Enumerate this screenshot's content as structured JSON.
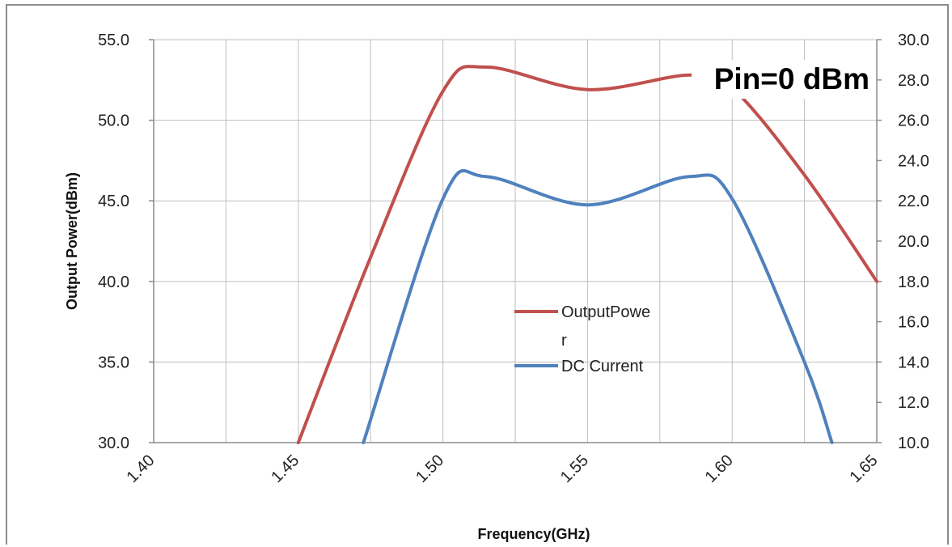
{
  "chart_data": {
    "type": "line",
    "xlabel": "Frequency(GHz)",
    "ylabel": "Output Power(dBm)",
    "annotation": "Pin=0 dBm",
    "x_ticks": [
      "1.40",
      "1.45",
      "1.50",
      "1.55",
      "1.60",
      "1.65"
    ],
    "y_left_ticks": [
      "30.0",
      "35.0",
      "40.0",
      "45.0",
      "50.0",
      "55.0"
    ],
    "y_right_ticks": [
      "10.0",
      "12.0",
      "14.0",
      "16.0",
      "18.0",
      "20.0",
      "22.0",
      "24.0",
      "26.0",
      "28.0",
      "30.0"
    ],
    "xlim": [
      1.4,
      1.65
    ],
    "ylim_left": [
      30,
      55
    ],
    "ylim_right": [
      10,
      30
    ],
    "grid": true,
    "legend_position": "center",
    "series": [
      {
        "name": "OutputPower",
        "legend_lines": [
          "OutputPowe",
          "r"
        ],
        "axis": "left",
        "color": "#C0504D",
        "x": [
          1.45,
          1.475,
          1.5,
          1.515,
          1.55,
          1.585,
          1.6,
          1.625,
          1.65
        ],
        "y": [
          30.0,
          41.5,
          51.8,
          53.3,
          51.9,
          52.8,
          52.0,
          46.6,
          40.0
        ]
      },
      {
        "name": "DC Current",
        "legend_lines": [
          "DC Current"
        ],
        "axis": "right",
        "color": "#4F81BD",
        "x": [
          1.4725,
          1.5,
          1.515,
          1.55,
          1.585,
          1.6,
          1.625,
          1.6345
        ],
        "y": [
          10.0,
          22.1,
          23.2,
          21.8,
          23.2,
          22.1,
          14.0,
          10.0
        ]
      }
    ]
  }
}
